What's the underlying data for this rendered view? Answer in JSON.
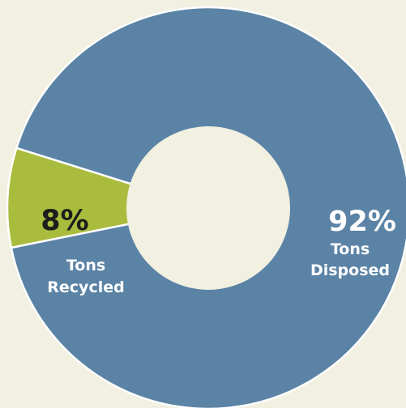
{
  "chart_data": {
    "type": "pie",
    "variant": "donut",
    "slices": [
      {
        "label": "Tons Disposed",
        "label_lines": [
          "Tons",
          "Disposed"
        ],
        "value": 92,
        "value_label": "92%",
        "color": "#5b83a6"
      },
      {
        "label": "Tons Recycled",
        "label_lines": [
          "Tons",
          "Recycled"
        ],
        "value": 8,
        "value_label": "8%",
        "color": "#a9bc3d"
      }
    ],
    "background_color": "#f1f0e1",
    "separator_color": "#ffffff"
  }
}
